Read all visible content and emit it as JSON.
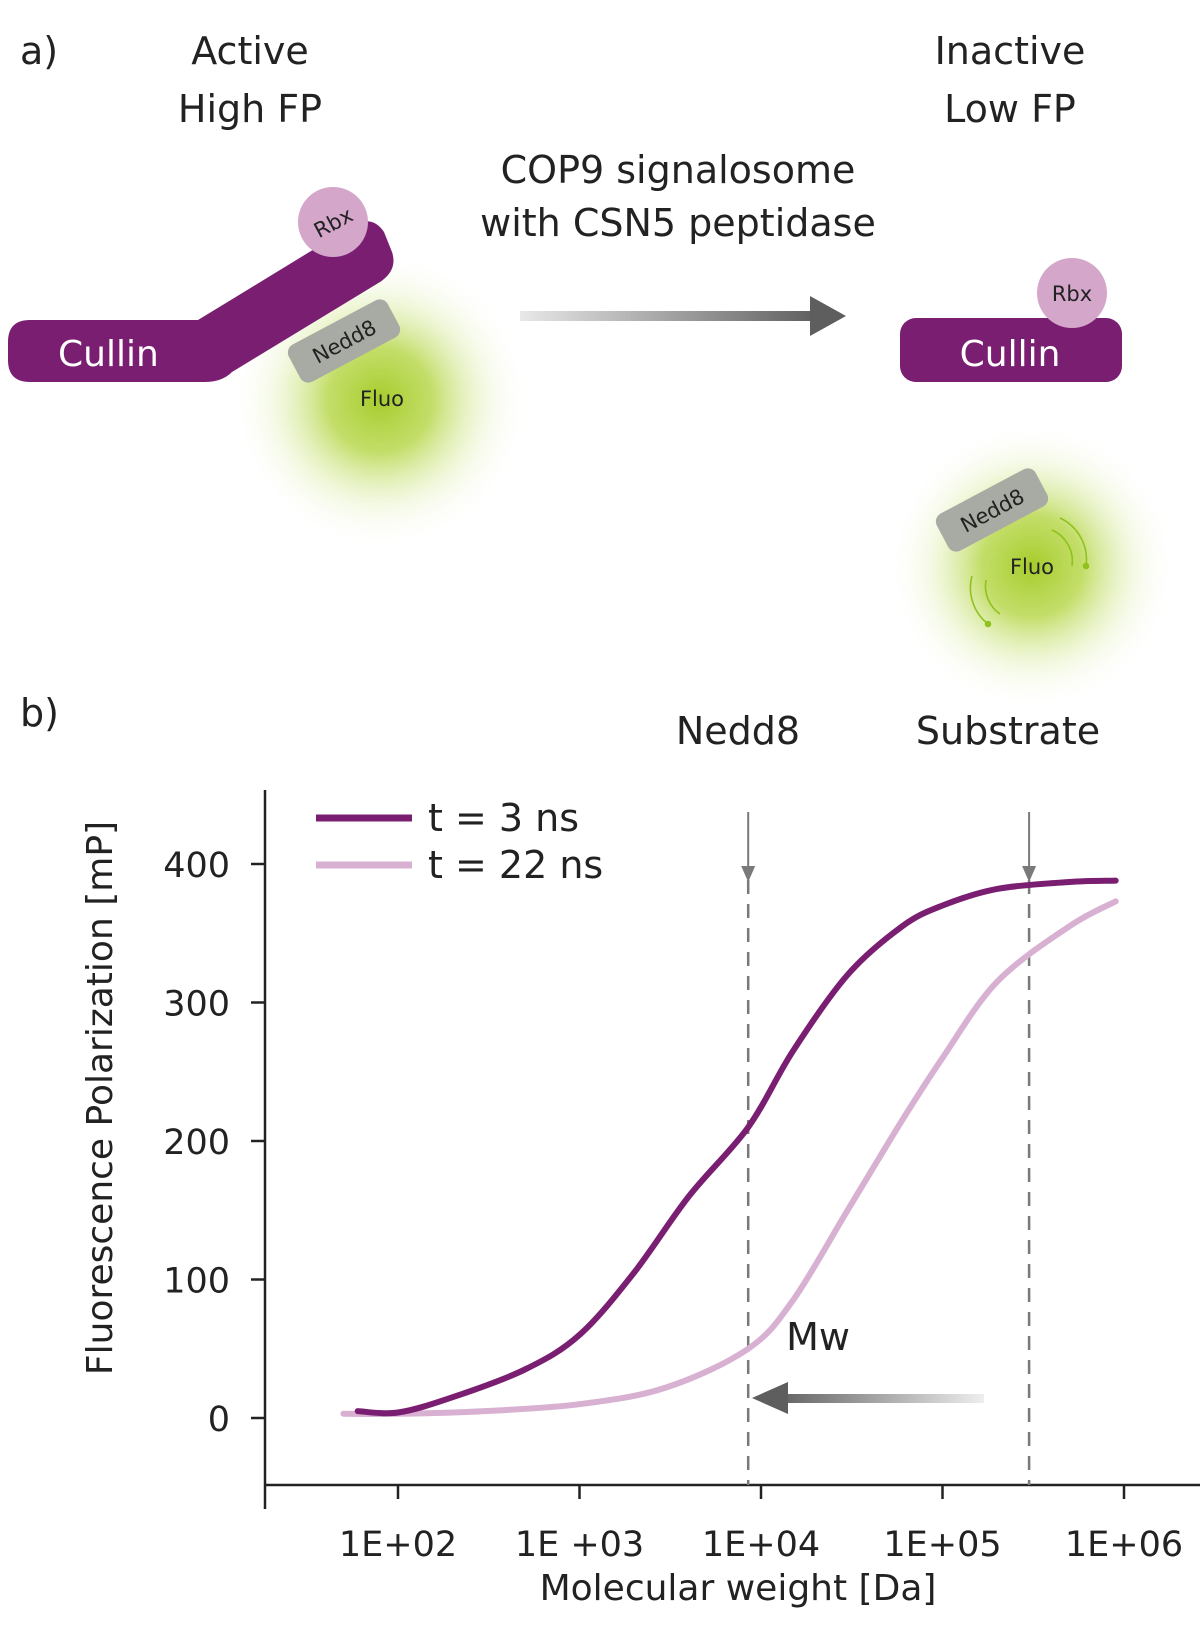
{
  "panel_a": {
    "label": "a)",
    "left": {
      "state1": "Active",
      "state2": "High FP"
    },
    "right": {
      "state1": "Inactive",
      "state2": "Low FP"
    },
    "enzyme": {
      "line1": "COP9 signalosome",
      "line2": "with CSN5 peptidase"
    },
    "cullin_label": "Cullin",
    "rbx_label": "Rbx",
    "nedd8_label": "Nedd8",
    "fluo_label": "Fluo"
  },
  "panel_b": {
    "label": "b)",
    "marker_nedd8": "Nedd8",
    "marker_substrate": "Substrate",
    "mw_label": "Mw"
  },
  "colors": {
    "cullin": "#7a1e72",
    "rbx": "#d3a6ca",
    "nedd8": "#a8aba4",
    "fluo_glow": "#a6cc2c",
    "series_3ns": "#7a1e72",
    "series_22ns": "#d8b0d2",
    "dashed": "#7a7a7a"
  },
  "chart_data": {
    "type": "line",
    "xlabel": "Molecular weight [Da]",
    "ylabel": "Fluorescence Polarization [mP]",
    "x_scale": "log",
    "xlim": [
      40,
      2000000
    ],
    "ylim": [
      -50,
      450
    ],
    "x_ticks": [
      100,
      1000,
      10000,
      100000,
      1000000
    ],
    "x_tick_labels": [
      "1E+02",
      "1E +03",
      "1E+04",
      "1E+05",
      "1E+06"
    ],
    "y_ticks": [
      0,
      100,
      200,
      300,
      400
    ],
    "y_tick_labels": [
      "0",
      "100",
      "200",
      "300",
      "400"
    ],
    "legend": "top-left",
    "grid": false,
    "markers": [
      {
        "name": "Nedd8",
        "x": 8500
      },
      {
        "name": "Substrate",
        "x": 300000
      }
    ],
    "series": [
      {
        "name": "t = 3 ns",
        "x": [
          60,
          100,
          200,
          500,
          1000,
          2000,
          4000,
          8500,
          15000,
          30000,
          60000,
          100000,
          200000,
          500000,
          900000
        ],
        "y": [
          5,
          4,
          15,
          35,
          60,
          105,
          160,
          210,
          265,
          320,
          355,
          370,
          382,
          387,
          388
        ]
      },
      {
        "name": "t = 22 ns",
        "x": [
          50,
          100,
          300,
          1000,
          3000,
          8500,
          15000,
          30000,
          60000,
          100000,
          200000,
          500000,
          900000
        ],
        "y": [
          3,
          3,
          5,
          10,
          22,
          50,
          85,
          150,
          215,
          260,
          315,
          355,
          373
        ]
      }
    ]
  }
}
